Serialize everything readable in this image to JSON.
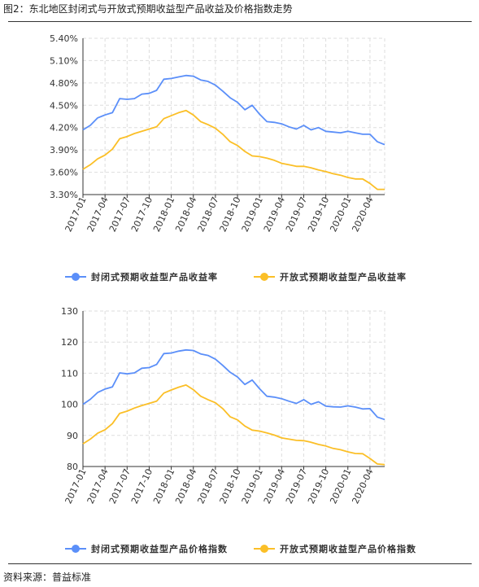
{
  "caption": "图2：东北地区封闭式与开放式预期收益型产品收益及价格指数走势",
  "source": "资料来源：普益标准",
  "colors": {
    "closed": "#5B8FF9",
    "open": "#FBBF27",
    "grid": "#dddddd",
    "axis": "#333333"
  },
  "chart_data": [
    {
      "type": "line",
      "title": "",
      "ylim": [
        3.3,
        5.4
      ],
      "yticks": [
        "3.30%",
        "3.60%",
        "3.90%",
        "4.20%",
        "4.50%",
        "4.80%",
        "5.10%",
        "5.40%"
      ],
      "ytick_values": [
        3.3,
        3.6,
        3.9,
        4.2,
        4.5,
        4.8,
        5.1,
        5.4
      ],
      "xticks": [
        "2017-01",
        "2017-04",
        "2017-07",
        "2017-10",
        "2018-01",
        "2018-04",
        "2018-07",
        "2018-10",
        "2019-01",
        "2019-04",
        "2019-07",
        "2019-10",
        "2020-01",
        "2020-04"
      ],
      "grid": true,
      "legend_position": "bottom",
      "series": [
        {
          "name": "封闭式预期收益型产品收益率",
          "color": "#5B8FF9",
          "values": [
            4.17,
            4.23,
            4.33,
            4.37,
            4.4,
            4.59,
            4.58,
            4.59,
            4.65,
            4.66,
            4.7,
            4.85,
            4.86,
            4.88,
            4.9,
            4.89,
            4.84,
            4.82,
            4.77,
            4.69,
            4.6,
            4.54,
            4.44,
            4.5,
            4.38,
            4.28,
            4.27,
            4.25,
            4.21,
            4.18,
            4.23,
            4.17,
            4.2,
            4.15,
            4.14,
            4.13,
            4.15,
            4.13,
            4.11,
            4.11,
            4.01,
            3.97
          ]
        },
        {
          "name": "开放式预期收益型产品收益率",
          "color": "#FBBF27",
          "values": [
            3.64,
            3.7,
            3.78,
            3.83,
            3.91,
            4.05,
            4.08,
            4.12,
            4.15,
            4.18,
            4.21,
            4.32,
            4.36,
            4.4,
            4.43,
            4.37,
            4.28,
            4.24,
            4.19,
            4.11,
            4.01,
            3.96,
            3.88,
            3.82,
            3.81,
            3.79,
            3.76,
            3.72,
            3.7,
            3.68,
            3.68,
            3.66,
            3.63,
            3.61,
            3.58,
            3.56,
            3.53,
            3.51,
            3.51,
            3.45,
            3.37,
            3.37
          ]
        }
      ]
    },
    {
      "type": "line",
      "title": "",
      "ylim": [
        80,
        130
      ],
      "yticks": [
        "80",
        "90",
        "100",
        "110",
        "120",
        "130"
      ],
      "ytick_values": [
        80,
        90,
        100,
        110,
        120,
        130
      ],
      "xticks": [
        "2017-01",
        "2017-04",
        "2017-07",
        "2017-10",
        "2018-01",
        "2018-04",
        "2018-07",
        "2018-10",
        "2019-01",
        "2019-04",
        "2019-07",
        "2019-10",
        "2020-01",
        "2020-04"
      ],
      "grid": true,
      "legend_position": "bottom",
      "series": [
        {
          "name": "封闭式预期收益型产品价格指数",
          "color": "#5B8FF9",
          "values": [
            100.0,
            101.6,
            103.8,
            104.9,
            105.6,
            110.1,
            109.8,
            110.1,
            111.6,
            111.8,
            112.8,
            116.3,
            116.5,
            117.1,
            117.5,
            117.3,
            116.2,
            115.7,
            114.5,
            112.5,
            110.3,
            108.8,
            106.4,
            107.8,
            105.0,
            102.6,
            102.3,
            101.8,
            101.0,
            100.3,
            101.5,
            100.0,
            100.8,
            99.4,
            99.2,
            99.1,
            99.5,
            99.1,
            98.5,
            98.6,
            95.9,
            95.1
          ]
        },
        {
          "name": "开放式预期收益型产品价格指数",
          "color": "#FBBF27",
          "values": [
            87.3,
            88.8,
            90.7,
            91.8,
            93.8,
            97.1,
            97.8,
            98.8,
            99.6,
            100.3,
            101.0,
            103.6,
            104.6,
            105.5,
            106.2,
            104.7,
            102.6,
            101.5,
            100.5,
            98.6,
            96.0,
            95.0,
            93.0,
            91.7,
            91.4,
            90.8,
            90.1,
            89.2,
            88.8,
            88.4,
            88.3,
            87.8,
            87.1,
            86.6,
            85.8,
            85.4,
            84.7,
            84.2,
            84.1,
            82.6,
            80.8,
            80.6
          ]
        }
      ]
    }
  ]
}
